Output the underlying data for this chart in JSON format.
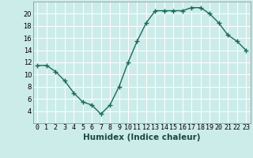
{
  "x": [
    0,
    1,
    2,
    3,
    4,
    5,
    6,
    7,
    8,
    9,
    10,
    11,
    12,
    13,
    14,
    15,
    16,
    17,
    18,
    19,
    20,
    21,
    22,
    23
  ],
  "y": [
    11.5,
    11.5,
    10.5,
    9.0,
    7.0,
    5.5,
    5.0,
    3.5,
    5.0,
    8.0,
    12.0,
    15.5,
    18.5,
    20.5,
    20.5,
    20.5,
    20.5,
    21.0,
    21.0,
    20.0,
    18.5,
    16.5,
    15.5,
    14.0
  ],
  "xlabel": "Humidex (Indice chaleur)",
  "xlim": [
    -0.5,
    23.5
  ],
  "ylim": [
    2,
    22
  ],
  "yticks": [
    4,
    6,
    8,
    10,
    12,
    14,
    16,
    18,
    20
  ],
  "xtick_labels": [
    "0",
    "1",
    "2",
    "3",
    "4",
    "5",
    "6",
    "7",
    "8",
    "9",
    "10",
    "11",
    "12",
    "13",
    "14",
    "15",
    "16",
    "17",
    "18",
    "19",
    "20",
    "21",
    "22",
    "23"
  ],
  "line_color": "#1a6b5a",
  "bg_color": "#ccecea",
  "grid_color": "#ffffff",
  "marker": "+",
  "marker_size": 4,
  "linewidth": 1.0,
  "tick_fontsize": 6.0,
  "xlabel_fontsize": 7.5
}
